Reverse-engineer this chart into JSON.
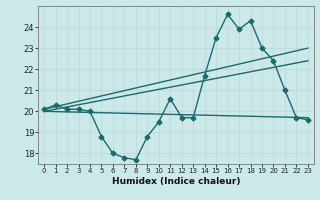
{
  "xlabel": "Humidex (Indice chaleur)",
  "background_color": "#cce9e9",
  "grid_color": "#c0d8d8",
  "line_color": "#1a6b6b",
  "xlim": [
    -0.5,
    23.5
  ],
  "ylim": [
    17.5,
    25.0
  ],
  "yticks": [
    18,
    19,
    20,
    21,
    22,
    23,
    24
  ],
  "xticks": [
    0,
    1,
    2,
    3,
    4,
    5,
    6,
    7,
    8,
    9,
    10,
    11,
    12,
    13,
    14,
    15,
    16,
    17,
    18,
    19,
    20,
    21,
    22,
    23
  ],
  "series1_x": [
    0,
    1,
    2,
    3,
    4,
    5,
    6,
    7,
    8,
    9,
    10,
    11,
    12,
    13,
    14,
    15,
    16,
    17,
    18,
    19,
    20,
    21,
    22,
    23
  ],
  "series1_y": [
    20.1,
    20.3,
    20.1,
    20.1,
    20.0,
    18.8,
    18.0,
    17.8,
    17.7,
    18.8,
    19.5,
    20.6,
    19.7,
    19.7,
    21.7,
    23.5,
    24.6,
    23.9,
    24.3,
    23.0,
    22.4,
    21.0,
    19.7,
    19.6
  ],
  "trend1_x": [
    0,
    23
  ],
  "trend1_y": [
    20.1,
    23.0
  ],
  "trend2_x": [
    0,
    23
  ],
  "trend2_y": [
    20.0,
    22.4
  ],
  "trend3_x": [
    0,
    23
  ],
  "trend3_y": [
    20.0,
    19.7
  ],
  "marker_size": 2.5,
  "line_width": 1.0
}
